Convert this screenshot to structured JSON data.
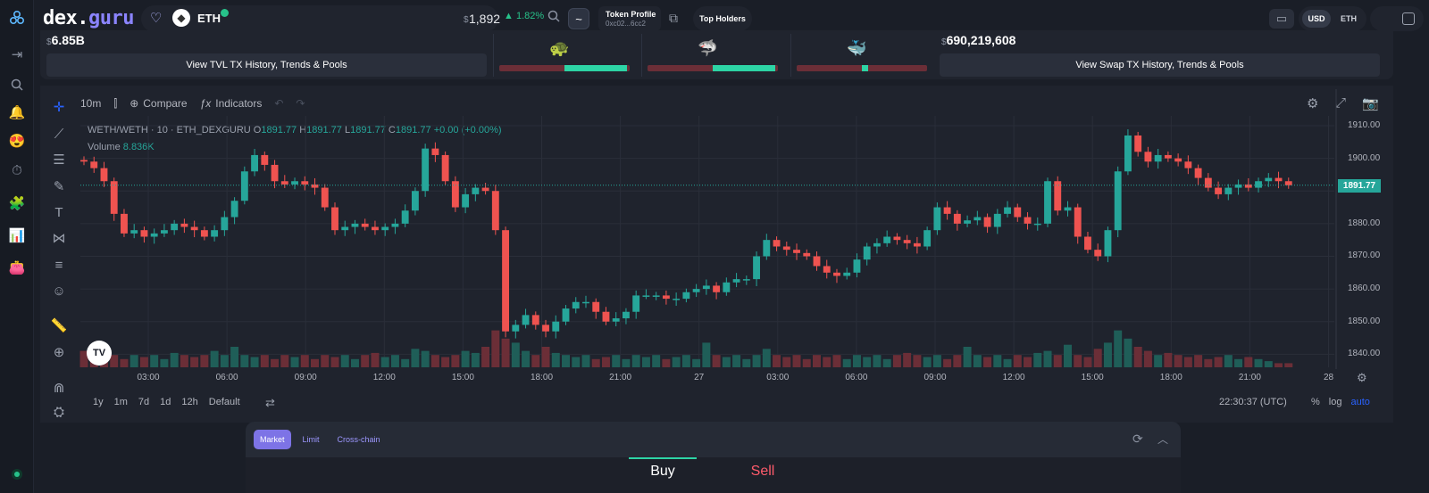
{
  "header": {
    "logo_main": "dex.",
    "logo_accent": "guru",
    "token_symbol": "ETH",
    "price_currency": "$",
    "price": "1,892",
    "change": "1.82%",
    "tilde": "~",
    "token_profile_title": "Token Profile",
    "token_profile_address": "0xc02...6cc2",
    "top_holders": "Top Holders",
    "currency_usd": "USD",
    "currency_eth": "ETH"
  },
  "stats": {
    "tvl_value": "6.85B",
    "tvl_button": "View TVL TX History, Trends & Pools",
    "swap_value": "690,219,608",
    "swap_button": "View Swap TX History, Trends & Pools",
    "traders": [
      {
        "emoji": "🐢",
        "fill": 0.48
      },
      {
        "emoji": "🦈",
        "fill": 0.48
      },
      {
        "emoji": "🐳",
        "fill": 0.05
      }
    ]
  },
  "chart_toolbar": {
    "interval": "10m",
    "compare": "Compare",
    "indicators": "Indicators"
  },
  "legend": {
    "symbol": "WETH/WETH · 10 · ETH_DEXGURU",
    "o_label": "O",
    "o_value": "1891.77",
    "h_label": "H",
    "h_value": "1891.77",
    "l_label": "L",
    "l_value": "1891.77",
    "c_label": "C",
    "c_value": "1891.77",
    "change": "+0.00 (+0.00%)",
    "volume_label": "Volume",
    "volume_value": "8.836K"
  },
  "chart_data": {
    "type": "candlestick",
    "y_ticks": [
      "1910.00",
      "1900.00",
      "1890.00",
      "1880.00",
      "1870.00",
      "1860.00",
      "1850.00",
      "1840.00"
    ],
    "ylim": [
      1836,
      1913
    ],
    "x_ticks": [
      "03:00",
      "06:00",
      "09:00",
      "12:00",
      "15:00",
      "18:00",
      "21:00",
      "27",
      "03:00",
      "06:00",
      "09:00",
      "12:00",
      "15:00",
      "18:00",
      "21:00",
      "28"
    ],
    "last_price": "1891.77",
    "close_path": [
      1899,
      1897,
      1893,
      1883,
      1877,
      1878,
      1876,
      1877,
      1878,
      1880,
      1879,
      1878,
      1876,
      1878,
      1882,
      1887,
      1896,
      1901,
      1898,
      1893,
      1892,
      1893,
      1892,
      1891,
      1885,
      1878,
      1879,
      1880,
      1879,
      1878,
      1879,
      1880,
      1884,
      1890,
      1903,
      1901,
      1893,
      1885,
      1889,
      1891,
      1890,
      1878,
      1847,
      1849,
      1852,
      1849,
      1847,
      1850,
      1854,
      1856,
      1856,
      1853,
      1850,
      1851,
      1853,
      1858,
      1858,
      1858,
      1857,
      1857,
      1859,
      1860,
      1861,
      1859,
      1862,
      1863,
      1863,
      1870,
      1875,
      1873,
      1872,
      1871,
      1870,
      1867,
      1865,
      1864,
      1865,
      1869,
      1873,
      1874,
      1876,
      1875,
      1874,
      1873,
      1878,
      1885,
      1883,
      1880,
      1881,
      1882,
      1879,
      1883,
      1885,
      1882,
      1880,
      1880,
      1893,
      1884,
      1885,
      1876,
      1872,
      1870,
      1878,
      1896,
      1907,
      1902,
      1899,
      1901,
      1900,
      1899,
      1897,
      1894,
      1891,
      1889,
      1891,
      1892,
      1891,
      1893,
      1894,
      1893,
      1891.77
    ],
    "volumes": [
      0.4,
      0.3,
      0.5,
      0.3,
      0.2,
      0.3,
      0.25,
      0.3,
      0.2,
      0.35,
      0.3,
      0.25,
      0.3,
      0.4,
      0.3,
      0.5,
      0.3,
      0.25,
      0.3,
      0.2,
      0.3,
      0.25,
      0.3,
      0.2,
      0.3,
      0.25,
      0.3,
      0.2,
      0.3,
      0.35,
      0.25,
      0.3,
      0.2,
      0.45,
      0.4,
      0.3,
      0.25,
      0.3,
      0.4,
      0.35,
      0.5,
      0.9,
      0.7,
      0.6,
      0.4,
      0.3,
      0.5,
      0.35,
      0.3,
      0.25,
      0.3,
      0.2,
      0.25,
      0.3,
      0.2,
      0.3,
      0.25,
      0.3,
      0.2,
      0.25,
      0.3,
      0.2,
      0.6,
      0.3,
      0.25,
      0.3,
      0.2,
      0.3,
      0.45,
      0.3,
      0.25,
      0.3,
      0.2,
      0.3,
      0.25,
      0.3,
      0.2,
      0.3,
      0.25,
      0.3,
      0.2,
      0.3,
      0.35,
      0.3,
      0.25,
      0.3,
      0.2,
      0.3,
      0.5,
      0.3,
      0.25,
      0.3,
      0.2,
      0.3,
      0.25,
      0.35,
      0.4,
      0.3,
      0.55,
      0.3,
      0.25,
      0.45,
      0.6,
      0.9,
      0.7,
      0.5,
      0.4,
      0.3,
      0.35,
      0.3,
      0.25,
      0.3,
      0.2,
      0.25,
      0.3,
      0.2,
      0.25,
      0.2,
      0.15,
      0.1,
      0.1
    ]
  },
  "timeframes": [
    "1y",
    "1m",
    "7d",
    "1d",
    "12h",
    "Default"
  ],
  "clock": "22:30:37 (UTC)",
  "scale_options": [
    "%",
    "log",
    "auto"
  ],
  "trade": {
    "tabs": [
      "Market",
      "Limit",
      "Cross-chain"
    ],
    "buy": "Buy",
    "sell": "Sell"
  },
  "colors": {
    "up": "#26a69a",
    "down": "#ef5350",
    "accent": "#7d73e6"
  }
}
